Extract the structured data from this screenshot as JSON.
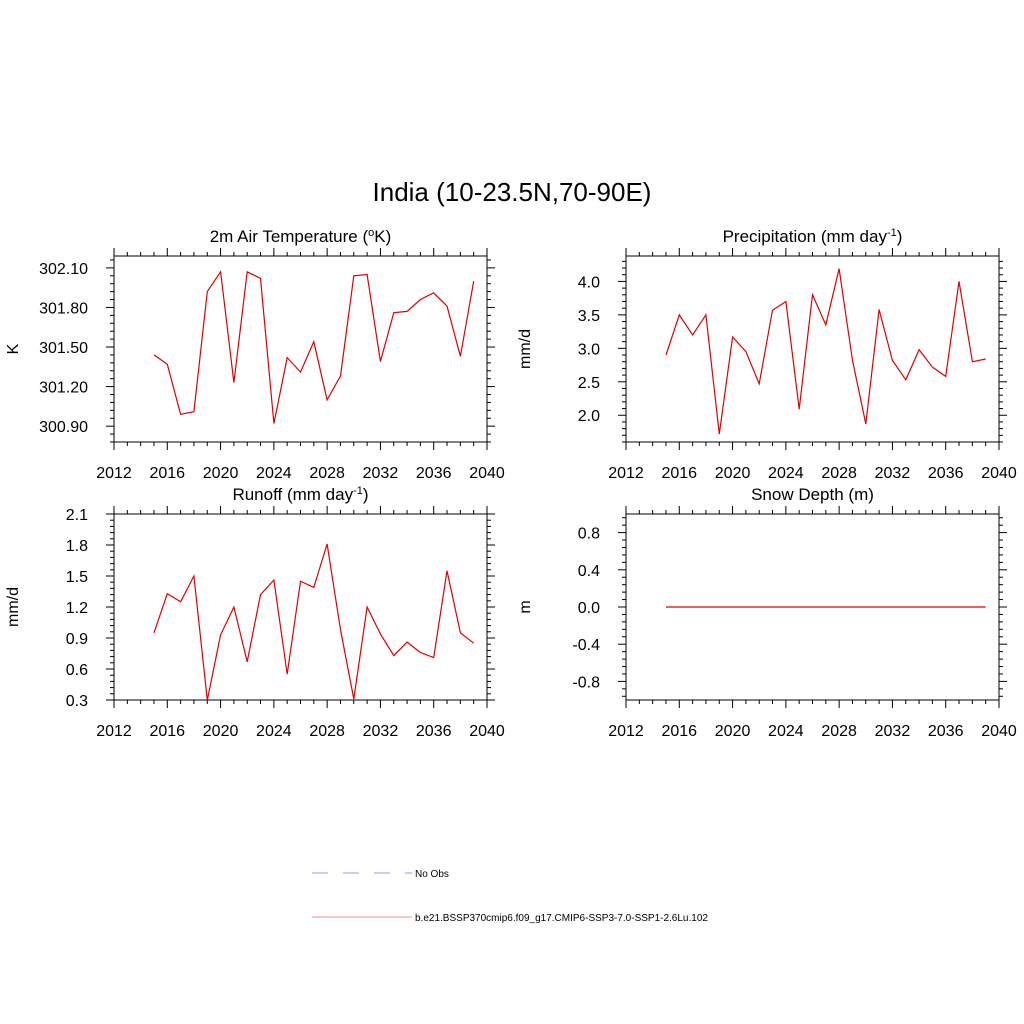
{
  "figure": {
    "title": "India (10-23.5N,70-90E)"
  },
  "chart_data": [
    {
      "type": "line",
      "title_main": "2m Air Temperature (",
      "title_sup": "o",
      "title_end": "K)",
      "ylabel": "K",
      "xlim": [
        2012,
        2040
      ],
      "ylim": [
        300.78,
        302.19
      ],
      "xticks": [
        2012,
        2016,
        2020,
        2024,
        2028,
        2032,
        2036,
        2040
      ],
      "yticks": [
        300.9,
        301.2,
        301.5,
        301.8,
        302.1
      ],
      "ytick_labels": [
        "300.90",
        "301.20",
        "301.50",
        "301.80",
        "302.10"
      ],
      "x": [
        2015,
        2016,
        2017,
        2018,
        2019,
        2020,
        2021,
        2022,
        2023,
        2024,
        2025,
        2026,
        2027,
        2028,
        2029,
        2030,
        2031,
        2032,
        2033,
        2034,
        2035,
        2036,
        2037,
        2038,
        2039
      ],
      "series": [
        {
          "color": "#e00000",
          "values": [
            301.44,
            301.37,
            300.99,
            301.01,
            301.92,
            302.07,
            301.23,
            302.07,
            302.02,
            300.92,
            301.42,
            301.31,
            301.54,
            301.1,
            301.28,
            302.04,
            302.05,
            301.39,
            301.76,
            301.77,
            301.86,
            301.91,
            301.81,
            301.43,
            302.0
          ]
        }
      ]
    },
    {
      "type": "line",
      "title_main": "Precipitation (mm day",
      "title_sup": "-1",
      "title_end": ")",
      "ylabel": "mm/d",
      "xlim": [
        2012,
        2040
      ],
      "ylim": [
        1.6,
        4.38
      ],
      "xticks": [
        2012,
        2016,
        2020,
        2024,
        2028,
        2032,
        2036,
        2040
      ],
      "yticks": [
        2.0,
        2.5,
        3.0,
        3.5,
        4.0
      ],
      "ytick_labels": [
        "2.0",
        "2.5",
        "3.0",
        "3.5",
        "4.0"
      ],
      "x": [
        2015,
        2016,
        2017,
        2018,
        2019,
        2020,
        2021,
        2022,
        2023,
        2024,
        2025,
        2026,
        2027,
        2028,
        2029,
        2030,
        2031,
        2032,
        2033,
        2034,
        2035,
        2036,
        2037,
        2038,
        2039
      ],
      "series": [
        {
          "color": "#e00000",
          "values": [
            2.9,
            3.5,
            3.2,
            3.5,
            1.72,
            3.17,
            2.95,
            2.47,
            3.57,
            3.7,
            2.09,
            3.8,
            3.35,
            4.19,
            2.82,
            1.87,
            3.58,
            2.82,
            2.53,
            2.98,
            2.72,
            2.58,
            4.0,
            2.8,
            2.84
          ]
        }
      ]
    },
    {
      "type": "line",
      "title_main": "Runoff (mm day",
      "title_sup": "-1",
      "title_end": ")",
      "ylabel": "mm/d",
      "xlim": [
        2012,
        2040
      ],
      "ylim": [
        0.3,
        2.1
      ],
      "xticks": [
        2012,
        2016,
        2020,
        2024,
        2028,
        2032,
        2036,
        2040
      ],
      "yticks": [
        0.3,
        0.6,
        0.9,
        1.2,
        1.5,
        1.8,
        2.1
      ],
      "ytick_labels": [
        "0.3",
        "0.6",
        "0.9",
        "1.2",
        "1.5",
        "1.8",
        "2.1"
      ],
      "x": [
        2015,
        2016,
        2017,
        2018,
        2019,
        2020,
        2021,
        2022,
        2023,
        2024,
        2025,
        2026,
        2027,
        2028,
        2029,
        2030,
        2031,
        2032,
        2033,
        2034,
        2035,
        2036,
        2037,
        2038,
        2039
      ],
      "series": [
        {
          "color": "#e00000",
          "values": [
            0.95,
            1.33,
            1.25,
            1.5,
            0.3,
            0.93,
            1.2,
            0.67,
            1.32,
            1.46,
            0.55,
            1.45,
            1.39,
            1.81,
            0.98,
            0.31,
            1.2,
            0.94,
            0.73,
            0.86,
            0.76,
            0.71,
            1.55,
            0.95,
            0.85
          ]
        }
      ]
    },
    {
      "type": "line",
      "title_main": "Snow Depth (m)",
      "title_sup": "",
      "title_end": "",
      "ylabel": "m",
      "xlim": [
        2012,
        2040
      ],
      "ylim": [
        -1.0,
        1.0
      ],
      "xticks": [
        2012,
        2016,
        2020,
        2024,
        2028,
        2032,
        2036,
        2040
      ],
      "yticks": [
        -0.8,
        -0.4,
        0.0,
        0.4,
        0.8
      ],
      "ytick_labels": [
        "-0.8",
        "-0.4",
        "0.0",
        "0.4",
        "0.8"
      ],
      "x": [
        2015,
        2016,
        2017,
        2018,
        2019,
        2020,
        2021,
        2022,
        2023,
        2024,
        2025,
        2026,
        2027,
        2028,
        2029,
        2030,
        2031,
        2032,
        2033,
        2034,
        2035,
        2036,
        2037,
        2038,
        2039
      ],
      "series": [
        {
          "color": "#e00000",
          "values": [
            0,
            0,
            0,
            0,
            0,
            0,
            0,
            0,
            0,
            0,
            0,
            0,
            0,
            0,
            0,
            0,
            0,
            0,
            0,
            0,
            0,
            0,
            0,
            0,
            0
          ]
        }
      ]
    }
  ],
  "legend": [
    {
      "label": "No Obs",
      "color": "#9999dd",
      "dash": "dashed"
    },
    {
      "label": "b.e21.BSSP370cmip6.f09_g17.CMIP6-SSP3-7.0-SSP1-2.6Lu.102",
      "color": "#ff8888",
      "dash": "solid"
    }
  ]
}
